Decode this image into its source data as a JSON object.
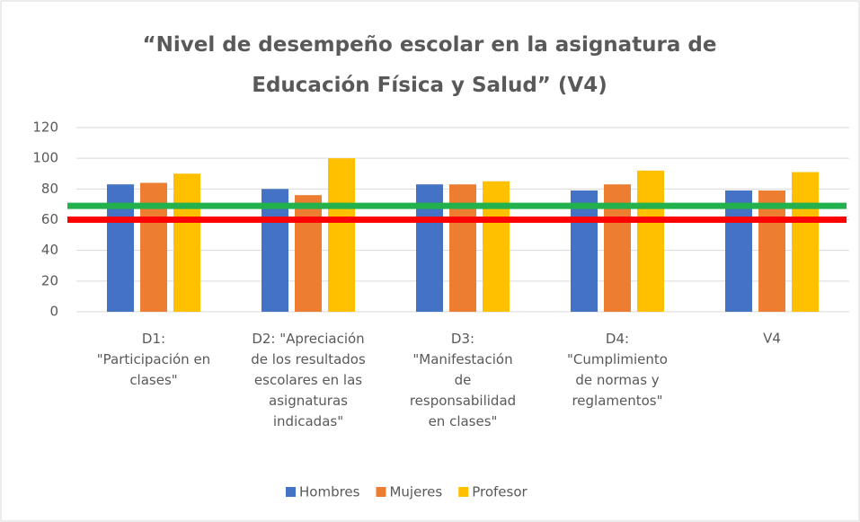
{
  "chart_data": {
    "type": "bar",
    "title": "“Nivel de desempeño escolar en la asignatura de\nEducación Física y Salud” (V4)",
    "categories": [
      "D1:\n\"Participación en\nclases\"",
      "D2: \"Apreciación\nde los resultados\nescolares en las\nasignaturas\nindicadas\"",
      "D3:\n\"Manifestación\nde\nresponsabilidad\nen clases\"",
      "D4:\n\"Cumplimiento\nde normas y\nreglamentos\"",
      "V4"
    ],
    "series": [
      {
        "name": "Hombres",
        "color": "#4472c4",
        "values": [
          83,
          80,
          83,
          79,
          79
        ]
      },
      {
        "name": "Mujeres",
        "color": "#ed7d31",
        "values": [
          84,
          76,
          83,
          83,
          79
        ]
      },
      {
        "name": "Profesor",
        "color": "#ffc000",
        "values": [
          90,
          100,
          85,
          92,
          91
        ]
      }
    ],
    "reference_lines": [
      {
        "value": 69,
        "color": "#22b14c"
      },
      {
        "value": 60,
        "color": "#ff0000"
      }
    ],
    "ylim": [
      0,
      120
    ],
    "yticks": [
      0,
      20,
      40,
      60,
      80,
      100,
      120
    ],
    "grid": true,
    "legend": "bottom"
  }
}
